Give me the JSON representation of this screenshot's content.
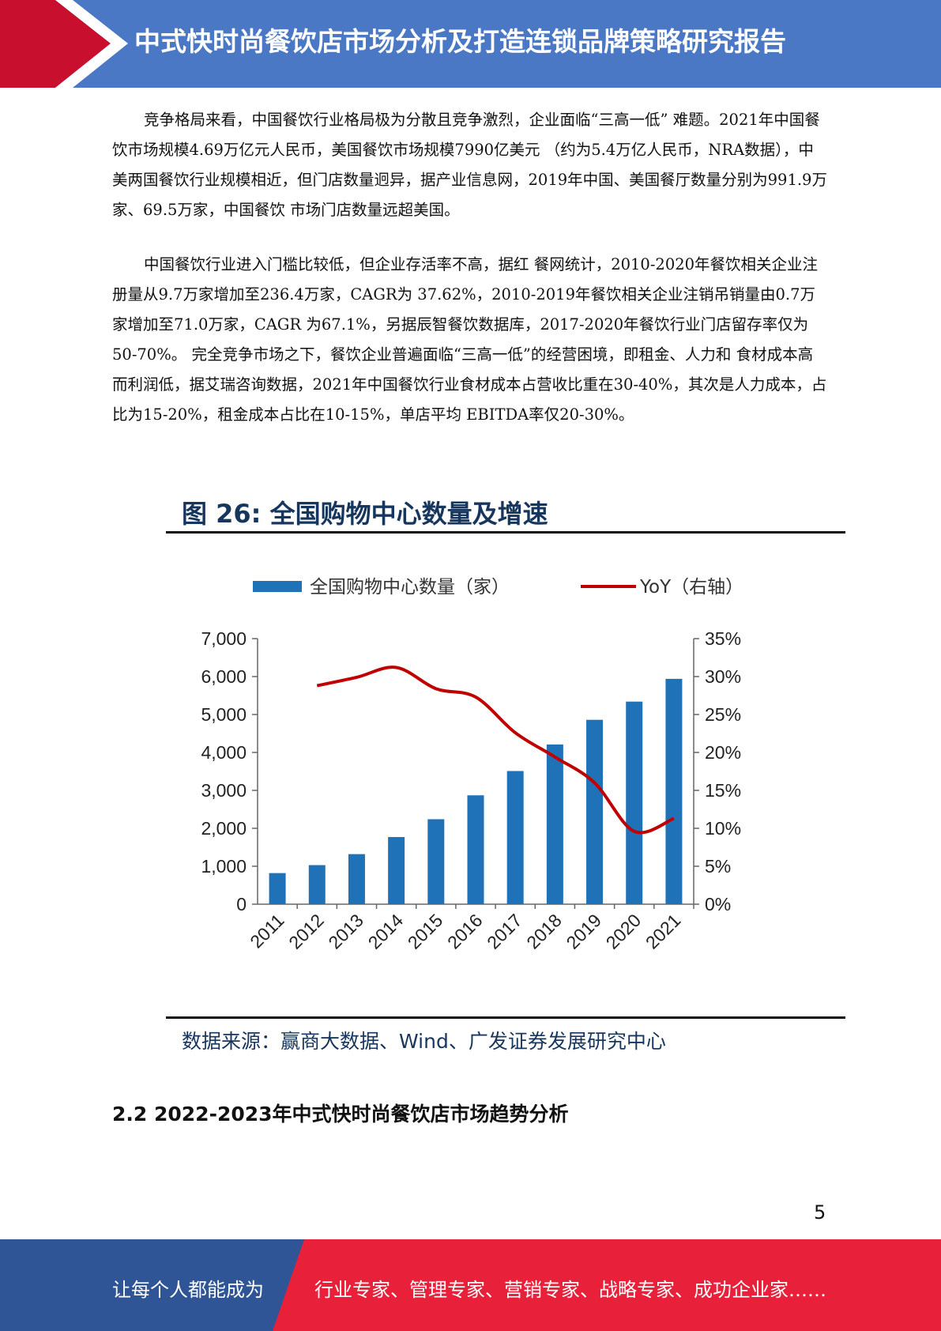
{
  "header": {
    "title": "中式快时尚餐饮店市场分析及打造连锁品牌策略研究报告",
    "colors": {
      "band": "#4a78c4",
      "accent": "#c8102e"
    }
  },
  "body": {
    "paragraphs": [
      "竞争格局来看，中国餐饮行业格局极为分散且竞争激烈，企业面临“三高一低” 难题。2021年中国餐饮市场规模4.69万亿元人民币，美国餐饮市场规模7990亿美元 （约为5.4万亿人民币，NRA数据），中美两国餐饮行业规模相近，但门店数量迥异，据产业信息网，2019年中国、美国餐厅数量分别为991.9万家、69.5万家，中国餐饮 市场门店数量远超美国。",
      "中国餐饮行业进入门槛比较低，但企业存活率不高，据红 餐网统计，2010-2020年餐饮相关企业注册量从9.7万家增加至236.4万家，CAGR为 37.62%，2010-2019年餐饮相关企业注销吊销量由0.7万家增加至71.0万家，CAGR 为67.1%，另据辰智餐饮数据库，2017-2020年餐饮行业门店留存率仅为50-70%。 完全竞争市场之下，餐饮企业普遍面临“三高一低”的经营困境，即租金、人力和 食材成本高而利润低，据艾瑞咨询数据，2021年中国餐饮行业食材成本占营收比重在30-40%，其次是人力成本，占比为15-20%，租金成本占比在10-15%，单店平均 EBITDA率仅20-30%。"
    ]
  },
  "figure": {
    "title": "图 26: 全国购物中心数量及增速",
    "source": "数据来源：赢商大数据、Wind、广发证券发展研究中心"
  },
  "chart_data": {
    "type": "bar",
    "title": "图 26: 全国购物中心数量及增速",
    "categories": [
      "2011",
      "2012",
      "2013",
      "2014",
      "2015",
      "2016",
      "2017",
      "2018",
      "2019",
      "2020",
      "2021"
    ],
    "series": [
      {
        "name": "全国购物中心数量（家）",
        "type": "bar",
        "axis": "left",
        "color": "#1f72b8",
        "values": [
          820,
          1030,
          1320,
          1770,
          2240,
          2870,
          3510,
          4210,
          4860,
          5340,
          5940
        ]
      },
      {
        "name": "YoY（右轴）",
        "type": "line",
        "axis": "right",
        "color": "#c00000",
        "values": [
          null,
          28.8,
          29.9,
          31.2,
          28.4,
          27.3,
          22.6,
          19.4,
          16.0,
          9.6,
          11.3
        ]
      }
    ],
    "y_left": {
      "ylim": [
        0,
        7000
      ],
      "ticks": [
        "0",
        "1,000",
        "2,000",
        "3,000",
        "4,000",
        "5,000",
        "6,000",
        "7,000"
      ]
    },
    "y_right": {
      "ylim": [
        0,
        35
      ],
      "ticks": [
        "0%",
        "5%",
        "10%",
        "15%",
        "20%",
        "25%",
        "30%",
        "35%"
      ]
    },
    "grid": false,
    "legend": "top"
  },
  "section": {
    "heading": "2.2 2022-2023年中式快时尚餐饮店市场趋势分析"
  },
  "page_number": "5",
  "footer": {
    "left": "让每个人都能成为",
    "right": "行业专家、管理专家、营销专家、战略专家、成功企业家……",
    "colors": {
      "left": "#2f5597",
      "right": "#e8203a"
    }
  }
}
